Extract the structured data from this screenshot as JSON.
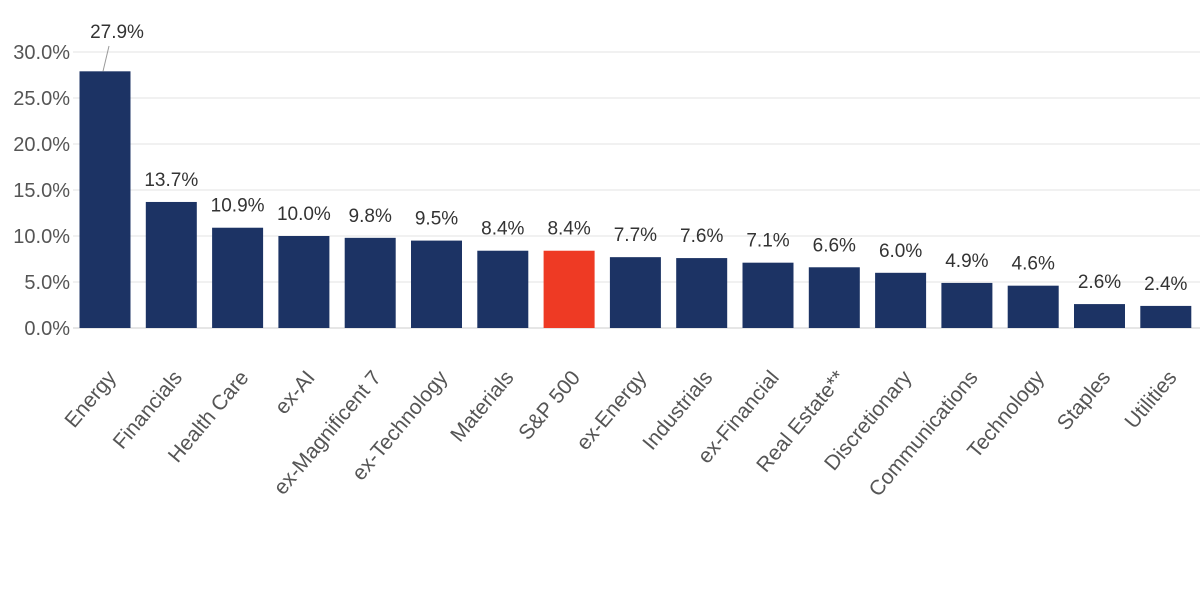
{
  "chart_data": {
    "type": "bar",
    "title": "",
    "xlabel": "",
    "ylabel": "",
    "ylim": [
      0,
      30
    ],
    "yticks": [
      0,
      5,
      10,
      15,
      20,
      25,
      30
    ],
    "ytick_labels": [
      "0.0%",
      "5.0%",
      "10.0%",
      "15.0%",
      "20.0%",
      "25.0%",
      "30.0%"
    ],
    "grid": true,
    "categories": [
      "Energy",
      "Financials",
      "Health Care",
      "ex-AI",
      "ex-Magnificent 7",
      "ex-Technology",
      "Materials",
      "S&P 500",
      "ex-Energy",
      "Industrials",
      "ex-Financial",
      "Real Estate**",
      "Discretionary",
      "Communications",
      "Technology",
      "Staples",
      "Utilities"
    ],
    "values": [
      27.9,
      13.7,
      10.9,
      10.0,
      9.8,
      9.5,
      8.4,
      8.4,
      7.7,
      7.6,
      7.1,
      6.6,
      6.0,
      4.9,
      4.6,
      2.6,
      2.4
    ],
    "value_labels": [
      "27.9%",
      "13.7%",
      "10.9%",
      "10.0%",
      "9.8%",
      "9.5%",
      "8.4%",
      "8.4%",
      "7.7%",
      "7.6%",
      "7.1%",
      "6.6%",
      "6.0%",
      "4.9%",
      "4.6%",
      "2.6%",
      "2.4%"
    ],
    "highlight_category": "S&P 500",
    "colors": {
      "bar": "#1c3364",
      "highlight": "#ee3a24",
      "grid": "#e3e3e3",
      "axis": "#cccccc",
      "leader_line": "#999999"
    }
  }
}
